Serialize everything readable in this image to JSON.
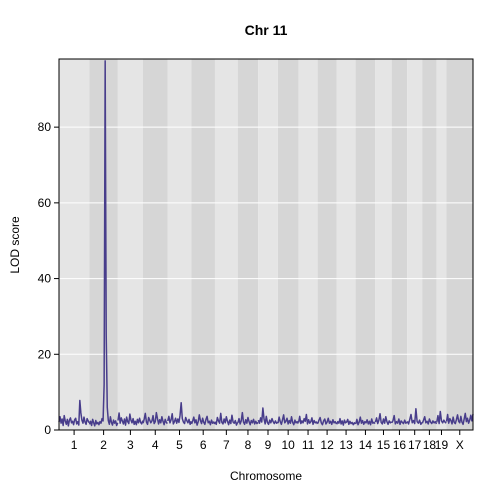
{
  "chart_data": {
    "type": "line",
    "title": "Chr 11",
    "xlabel": "Chromosome",
    "ylabel": "LOD score",
    "ylim": [
      0,
      98
    ],
    "yticks": [
      0,
      20,
      40,
      60,
      80
    ],
    "grid": true,
    "legend": "none",
    "colors": {
      "line": "#483d8b",
      "band_light": "#e5e5e5",
      "band_dark": "#d6d6d6",
      "grid": "#ffffff",
      "frame": "#000000"
    },
    "chromosomes": [
      {
        "label": "1",
        "length": 195
      },
      {
        "label": "2",
        "length": 182
      },
      {
        "label": "3",
        "length": 160
      },
      {
        "label": "4",
        "length": 157
      },
      {
        "label": "5",
        "length": 152
      },
      {
        "label": "6",
        "length": 150
      },
      {
        "label": "7",
        "length": 145
      },
      {
        "label": "8",
        "length": 130
      },
      {
        "label": "9",
        "length": 125
      },
      {
        "label": "10",
        "length": 131
      },
      {
        "label": "11",
        "length": 122
      },
      {
        "label": "12",
        "length": 120
      },
      {
        "label": "13",
        "length": 121
      },
      {
        "label": "14",
        "length": 125
      },
      {
        "label": "15",
        "length": 104
      },
      {
        "label": "16",
        "length": 98
      },
      {
        "label": "17",
        "length": 95
      },
      {
        "label": "18",
        "length": 91
      },
      {
        "label": "19",
        "length": 61
      },
      {
        "label": "X",
        "length": 171
      }
    ],
    "series": [
      {
        "values": [
          [
            2.1,
            3.5,
            1.8,
            2.9,
            1.2,
            3.8,
            2.4,
            1.5,
            2.8,
            1.1,
            2.6,
            3.2,
            1.9,
            2.3,
            1.4,
            2.7,
            3.1,
            1.6,
            2.2,
            1.3,
            7.8,
            4.5,
            2.6,
            1.8,
            3.4,
            2.1,
            1.5,
            3.0,
            2.4,
            1.9
          ],
          [
            1.5,
            2.3,
            1.2,
            2.8,
            1.9,
            1.1,
            2.5,
            1.6,
            2.0,
            1.4,
            2.2,
            1.8,
            3.0,
            2.4,
            12.0,
            97.5,
            25.0,
            6.0,
            2.5,
            1.5,
            3.5,
            2.0,
            1.3,
            2.6,
            1.8,
            2.4,
            1.2,
            1.9
          ],
          [
            2.5,
            4.5,
            1.8,
            3.2,
            2.4,
            1.6,
            2.9,
            1.3,
            3.4,
            2.2,
            1.7,
            4.2,
            2.6,
            1.9,
            3.0,
            1.5,
            2.3,
            1.4,
            2.8,
            1.9,
            3.1,
            2.0,
            1.6,
            2.5
          ],
          [
            1.8,
            2.9,
            4.4,
            2.1,
            1.5,
            3.3,
            2.6,
            1.9,
            2.4,
            3.8,
            1.7,
            2.2,
            4.6,
            3.0,
            1.6,
            2.7,
            1.9,
            3.5,
            2.3,
            1.4,
            2.8,
            2.0,
            1.7
          ],
          [
            2.4,
            3.6,
            1.9,
            2.7,
            4.3,
            1.6,
            2.2,
            3.1,
            1.8,
            2.9,
            2.0,
            3.9,
            7.2,
            3.0,
            2.1,
            1.7,
            3.3,
            2.5,
            1.9,
            2.8,
            1.5,
            2.3
          ],
          [
            1.6,
            2.4,
            3.4,
            1.9,
            2.7,
            1.3,
            2.2,
            4.0,
            2.5,
            1.7,
            3.1,
            2.0,
            1.5,
            2.8,
            3.6,
            1.9,
            2.3,
            1.4,
            2.6,
            1.8,
            2.1,
            1.6
          ],
          [
            2.2,
            1.5,
            3.3,
            2.4,
            1.8,
            4.4,
            2.0,
            1.6,
            2.9,
            1.9,
            3.5,
            2.3,
            1.4,
            2.6,
            1.7,
            3.9,
            2.1,
            1.8,
            2.5,
            1.3,
            2.0
          ],
          [
            1.9,
            3.0,
            1.6,
            2.4,
            4.6,
            2.1,
            1.5,
            2.7,
            1.8,
            3.3,
            2.2,
            1.4,
            2.5,
            1.9,
            2.8,
            1.6,
            2.3,
            1.7,
            2.0
          ],
          [
            2.6,
            1.8,
            3.2,
            2.1,
            5.8,
            2.9,
            1.6,
            3.6,
            2.0,
            1.5,
            2.6,
            1.9,
            3.0,
            2.2,
            1.7,
            2.4,
            1.8,
            2.0
          ],
          [
            1.8,
            3.4,
            2.2,
            1.5,
            2.7,
            4.0,
            1.9,
            2.3,
            3.1,
            1.6,
            2.5,
            1.8,
            3.5,
            2.0,
            1.4,
            2.6,
            1.9,
            2.2,
            1.7
          ],
          [
            2.0,
            3.6,
            1.7,
            2.4,
            1.9,
            3.0,
            2.3,
            4.1,
            1.6,
            2.7,
            1.8,
            2.2,
            3.2,
            1.5,
            2.5,
            1.9,
            2.1,
            1.6
          ],
          [
            1.7,
            2.6,
            3.3,
            1.9,
            1.4,
            2.4,
            2.9,
            1.6,
            2.1,
            3.1,
            1.8,
            2.3,
            1.5,
            2.7,
            1.9,
            2.2,
            1.6
          ],
          [
            1.5,
            2.2,
            1.8,
            3.0,
            1.6,
            2.4,
            1.3,
            2.6,
            1.9,
            2.1,
            2.8,
            1.5,
            2.3,
            1.7,
            2.0,
            1.4,
            1.9,
            1.6
          ],
          [
            1.6,
            2.8,
            1.4,
            2.1,
            3.4,
            1.8,
            2.5,
            1.5,
            2.2,
            1.9,
            2.7,
            1.6,
            2.3,
            1.4,
            2.9,
            1.8,
            2.0,
            1.7
          ],
          [
            2.1,
            3.2,
            1.7,
            2.6,
            4.3,
            2.0,
            1.6,
            2.9,
            1.8,
            3.5,
            2.2,
            1.5,
            2.4,
            1.9,
            2.1
          ],
          [
            1.9,
            2.5,
            3.8,
            1.6,
            2.2,
            1.8,
            2.9,
            1.5,
            2.4,
            2.0,
            1.7,
            2.6,
            1.8,
            2.1
          ],
          [
            2.3,
            1.6,
            2.8,
            4.1,
            1.9,
            2.5,
            1.7,
            5.6,
            2.2,
            1.8,
            2.6,
            1.5,
            2.0
          ],
          [
            1.8,
            2.6,
            3.5,
            1.9,
            2.3,
            1.6,
            2.9,
            2.1,
            1.7,
            2.4,
            1.9,
            2.2,
            1.6
          ],
          [
            2.0,
            3.8,
            1.7,
            4.9,
            2.4,
            1.9,
            2.6,
            2.1,
            1.8
          ],
          [
            2.2,
            4.1,
            1.8,
            3.0,
            2.5,
            1.6,
            3.4,
            2.0,
            1.7,
            2.8,
            4.0,
            2.3,
            1.9,
            3.6,
            2.1,
            1.5,
            2.9,
            4.4,
            2.2,
            3.1,
            1.8,
            2.6,
            3.9,
            2.4,
            4.2
          ]
        ]
      }
    ]
  }
}
